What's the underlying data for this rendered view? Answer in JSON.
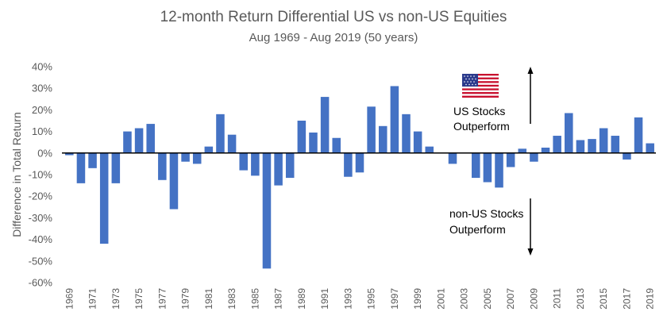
{
  "chart_data": {
    "type": "bar",
    "title": "12-month Return Differential US vs non-US Equities",
    "subtitle": "Aug 1969 - Aug 2019 (50 years)",
    "xlabel": "",
    "ylabel": "Difference in Total Return",
    "ylim": [
      -60,
      40
    ],
    "yticks": [
      -60,
      -50,
      -40,
      -30,
      -20,
      -10,
      0,
      10,
      20,
      30,
      40
    ],
    "ytick_format": "percent",
    "grid": false,
    "bar_color": "#4472C4",
    "categories": [
      1969,
      1970,
      1971,
      1972,
      1973,
      1974,
      1975,
      1976,
      1977,
      1978,
      1979,
      1980,
      1981,
      1982,
      1983,
      1984,
      1985,
      1986,
      1987,
      1988,
      1989,
      1990,
      1991,
      1992,
      1993,
      1994,
      1995,
      1996,
      1997,
      1998,
      1999,
      2000,
      2001,
      2002,
      2003,
      2004,
      2005,
      2006,
      2007,
      2008,
      2009,
      2010,
      2011,
      2012,
      2013,
      2014,
      2015,
      2016,
      2017,
      2018,
      2019
    ],
    "tick_labels": [
      "1969",
      "1971",
      "1973",
      "1975",
      "1977",
      "1979",
      "1981",
      "1983",
      "1985",
      "1987",
      "1989",
      "1991",
      "1993",
      "1995",
      "1997",
      "1999",
      "2001",
      "2003",
      "2005",
      "2007",
      "2009",
      "2011",
      "2013",
      "2015",
      "2017",
      "2019"
    ],
    "values": [
      -1,
      -14,
      -7,
      -42,
      -14,
      10,
      11.5,
      13.5,
      -12.5,
      -26,
      -4,
      -5,
      3,
      18,
      8.5,
      -8,
      -10.5,
      -53.5,
      -15,
      -11.5,
      15,
      9.5,
      26,
      7,
      -11,
      -9,
      21.5,
      12.5,
      31,
      18,
      10,
      3,
      0,
      -5,
      0,
      -11.5,
      -13.5,
      -16,
      -6.5,
      2,
      -4,
      2.5,
      8,
      18.5,
      6,
      6.5,
      11.5,
      8,
      -3,
      16.5,
      4.5
    ],
    "annotations": {
      "us_label_line1": "US Stocks",
      "us_label_line2": "Outperform",
      "nonus_label_line1": "non-US Stocks",
      "nonus_label_line2": "Outperform",
      "flag_icon": "us-flag-icon",
      "up_arrow_icon": "arrow-up-icon",
      "down_arrow_icon": "arrow-down-icon"
    }
  }
}
